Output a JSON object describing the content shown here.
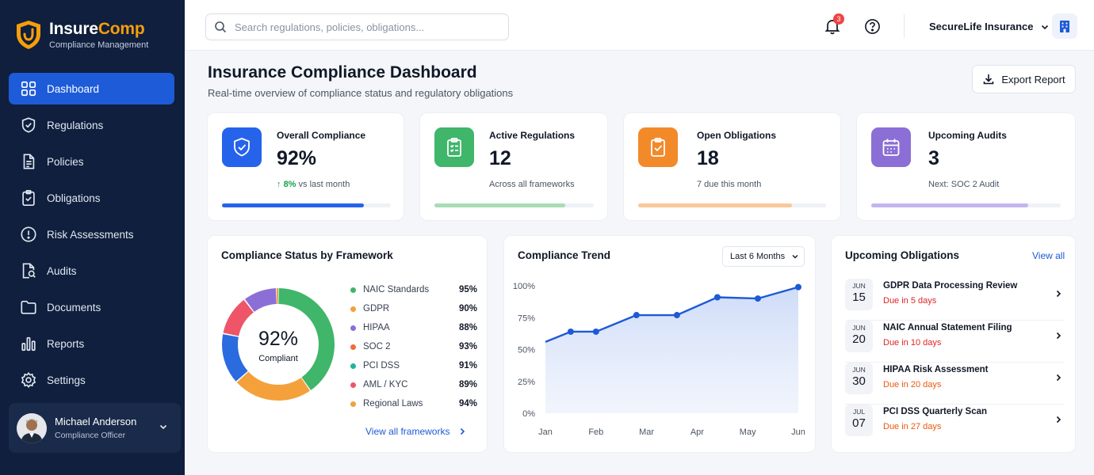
{
  "brand": {
    "name_a": "Insure",
    "name_b": "Comp",
    "subtitle": "Compliance Management"
  },
  "nav": [
    {
      "label": "Dashboard",
      "icon": "grid-icon",
      "active": true
    },
    {
      "label": "Regulations",
      "icon": "shield-check-icon"
    },
    {
      "label": "Policies",
      "icon": "document-icon"
    },
    {
      "label": "Obligations",
      "icon": "clipboard-check-icon"
    },
    {
      "label": "Risk Assessments",
      "icon": "alert-circle-icon"
    },
    {
      "label": "Audits",
      "icon": "file-search-icon"
    },
    {
      "label": "Documents",
      "icon": "folder-icon"
    },
    {
      "label": "Reports",
      "icon": "bar-chart-icon"
    },
    {
      "label": "Settings",
      "icon": "gear-icon"
    }
  ],
  "user": {
    "name": "Michael Anderson",
    "role": "Compliance Officer"
  },
  "topbar": {
    "search_placeholder": "Search regulations, policies, obligations...",
    "notification_count": "3",
    "org_name": "SecureLife Insurance"
  },
  "page": {
    "title": "Insurance Compliance Dashboard",
    "subtitle": "Real-time overview of compliance status and regulatory obligations",
    "export_label": "Export Report"
  },
  "stats": [
    {
      "title": "Overall Compliance",
      "value": "92%",
      "note_up": "8%",
      "note": " vs last month",
      "progress": 0.84,
      "color": "#2563eb",
      "track": "#eef1f6",
      "icon": "shield-check-icon"
    },
    {
      "title": "Active Regulations",
      "value": "12",
      "note": "Across all frameworks",
      "progress": 0.82,
      "color": "#a8dcb6",
      "track": "#eef1f6",
      "icon": "clipboard-list-icon"
    },
    {
      "title": "Open Obligations",
      "value": "18",
      "note": "7 due this month",
      "progress": 0.82,
      "color": "#fbc79b",
      "track": "#eef1f6",
      "icon": "clipboard-check-icon"
    },
    {
      "title": "Upcoming Audits",
      "value": "3",
      "note": "Next: SOC 2 Audit",
      "progress": 0.83,
      "color": "#c4b5f0",
      "track": "#eef1f6",
      "icon": "calendar-icon"
    }
  ],
  "framework": {
    "title": "Compliance Status by Framework",
    "center_value": "92%",
    "center_label": "Compliant",
    "view_all": "View all frameworks",
    "items": [
      {
        "name": "NAIC Standards",
        "value": "95%",
        "share": 0.32,
        "color": "#3fb66a"
      },
      {
        "name": "GDPR",
        "value": "90%",
        "share": 0.24,
        "color": "#f4a13b"
      },
      {
        "name": "HIPAA",
        "value": "88%",
        "share": 0.0,
        "color": "#8b6fd6"
      },
      {
        "name": "SOC 2",
        "value": "93%",
        "share": 0.0,
        "color": "#f26b3a"
      },
      {
        "name": "PCI DSS",
        "value": "91%",
        "share": 0.0,
        "color": "#22b39a"
      },
      {
        "name": "AML / KYC",
        "value": "89%",
        "share": 0.0,
        "color": "#ee5568"
      },
      {
        "name": "Regional Laws",
        "value": "94%",
        "share": 0.0,
        "color": "#f0a040"
      }
    ]
  },
  "trend": {
    "title": "Compliance Trend",
    "range": "Last 6 Months"
  },
  "chart_data": {
    "type": "line",
    "title": "Compliance Trend",
    "x": [
      "Jan",
      "",
      "Feb",
      "",
      "Mar",
      "",
      "Apr",
      "",
      "May",
      "",
      "Jun"
    ],
    "categories": [
      "Jan",
      "Feb",
      "Mar",
      "Apr",
      "May",
      "Jun"
    ],
    "points": [
      {
        "x": 0.0,
        "y": 56
      },
      {
        "x": 0.5,
        "y": 64
      },
      {
        "x": 1.0,
        "y": 64
      },
      {
        "x": 1.8,
        "y": 77
      },
      {
        "x": 2.6,
        "y": 77
      },
      {
        "x": 3.4,
        "y": 91
      },
      {
        "x": 4.2,
        "y": 90
      },
      {
        "x": 5.0,
        "y": 99
      }
    ],
    "yticks": [
      "100%",
      "75%",
      "50%",
      "25%",
      "0%"
    ],
    "ylim": [
      0,
      100
    ],
    "grid": false,
    "color": "#1d5ad6"
  },
  "obligations": {
    "title": "Upcoming Obligations",
    "view_all": "View all",
    "items": [
      {
        "month": "JUN",
        "day": "15",
        "name": "GDPR Data Processing Review",
        "due": "Due in 5 days",
        "due_color": "#dc2626"
      },
      {
        "month": "JUN",
        "day": "20",
        "name": "NAIC Annual Statement Filing",
        "due": "Due in 10 days",
        "due_color": "#dc2626"
      },
      {
        "month": "JUN",
        "day": "30",
        "name": "HIPAA Risk Assessment",
        "due": "Due in 20 days",
        "due_color": "#ea580c"
      },
      {
        "month": "JUL",
        "day": "07",
        "name": "PCI DSS Quarterly Scan",
        "due": "Due in 27 days",
        "due_color": "#ea580c"
      }
    ]
  }
}
